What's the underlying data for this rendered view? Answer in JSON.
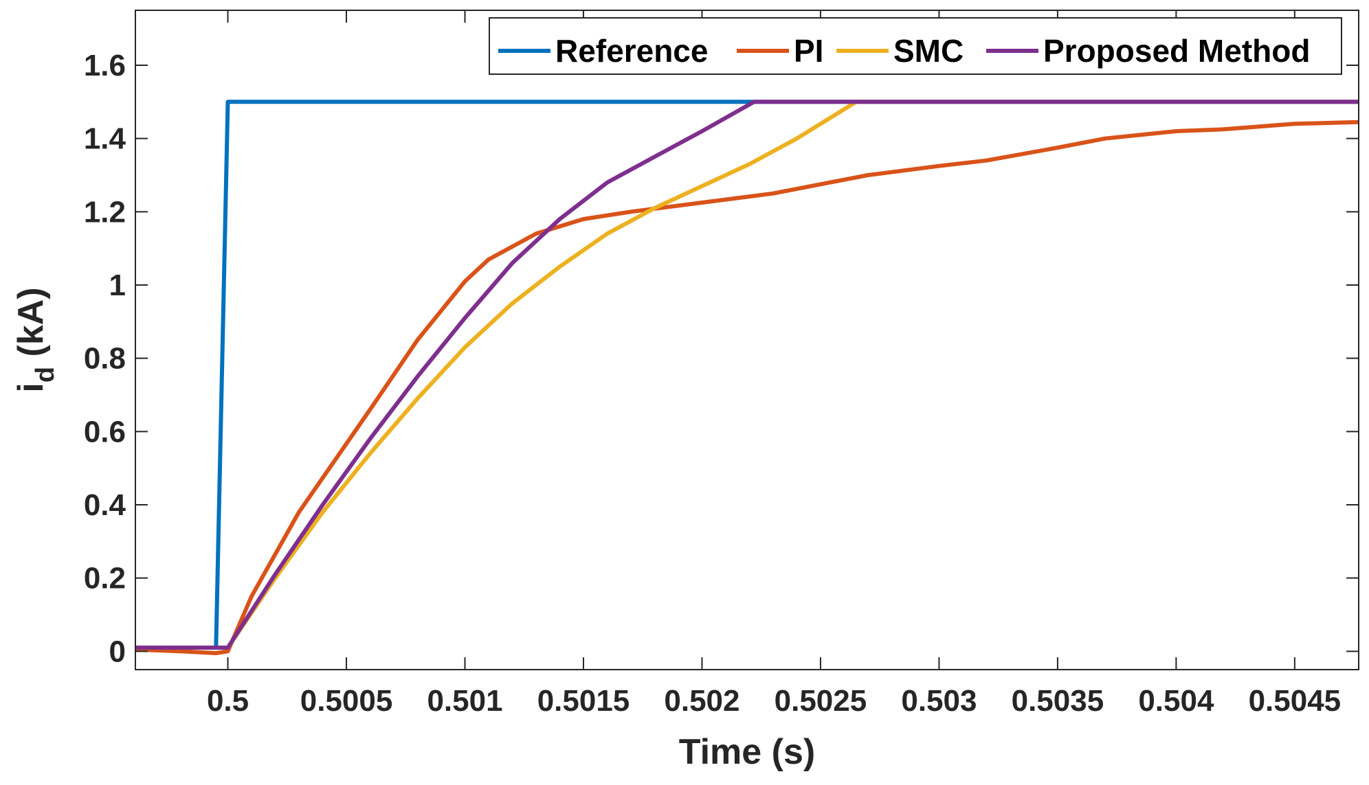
{
  "chart_data": {
    "type": "line",
    "title": "",
    "xlabel": "Time (s)",
    "ylabel_main": "i",
    "ylabel_sub": "d",
    "ylabel_rest": " (kA)",
    "xlim": [
      0.49961,
      0.50477
    ],
    "ylim": [
      -0.05,
      1.75
    ],
    "x_ticks": [
      0.5,
      0.5005,
      0.501,
      0.5015,
      0.502,
      0.5025,
      0.503,
      0.5035,
      0.504,
      0.5045
    ],
    "x_tick_labels": [
      "0.5",
      "0.5005",
      "0.501",
      "0.5015",
      "0.502",
      "0.5025",
      "0.503",
      "0.5035",
      "0.504",
      "0.5045"
    ],
    "y_ticks": [
      0,
      0.2,
      0.4,
      0.6,
      0.8,
      1,
      1.2,
      1.4,
      1.6
    ],
    "y_tick_labels": [
      "0",
      "0.2",
      "0.4",
      "0.6",
      "0.8",
      "1",
      "1.2",
      "1.4",
      "1.6"
    ],
    "grid": false,
    "legend_position": "top-right",
    "series": [
      {
        "name": "Reference",
        "color": "#0072BD",
        "x": [
          0.49961,
          0.49995,
          0.5,
          0.50477
        ],
        "y": [
          0.01,
          0.01,
          1.5,
          1.5
        ]
      },
      {
        "name": "PI",
        "color": "#D95319",
        "x": [
          0.49961,
          0.4998,
          0.49995,
          0.5,
          0.5001,
          0.5003,
          0.5006,
          0.5008,
          0.501,
          0.5011,
          0.5013,
          0.5015,
          0.5017,
          0.502,
          0.5023,
          0.5025,
          0.5027,
          0.503,
          0.5032,
          0.5035,
          0.5037,
          0.504,
          0.5042,
          0.5045,
          0.50477
        ],
        "y": [
          0.005,
          0.0,
          -0.005,
          0.0,
          0.15,
          0.38,
          0.66,
          0.85,
          1.01,
          1.07,
          1.14,
          1.18,
          1.2,
          1.225,
          1.25,
          1.275,
          1.3,
          1.325,
          1.34,
          1.375,
          1.4,
          1.42,
          1.425,
          1.44,
          1.445
        ]
      },
      {
        "name": "SMC",
        "color": "#EDB120",
        "x": [
          0.49961,
          0.49995,
          0.5,
          0.5002,
          0.5004,
          0.5006,
          0.5008,
          0.501,
          0.5012,
          0.5014,
          0.5016,
          0.5018,
          0.502,
          0.5022,
          0.5024,
          0.50265,
          0.50477
        ],
        "y": [
          0.01,
          0.01,
          0.01,
          0.2,
          0.38,
          0.54,
          0.69,
          0.83,
          0.95,
          1.05,
          1.14,
          1.21,
          1.27,
          1.33,
          1.4,
          1.5,
          1.5
        ]
      },
      {
        "name": "Proposed Method",
        "color": "#7E2F8E",
        "x": [
          0.49961,
          0.49995,
          0.5,
          0.5002,
          0.5004,
          0.5006,
          0.5008,
          0.501,
          0.5012,
          0.5014,
          0.5016,
          0.5018,
          0.502,
          0.50222,
          0.50477
        ],
        "y": [
          0.01,
          0.01,
          0.01,
          0.21,
          0.4,
          0.58,
          0.75,
          0.91,
          1.06,
          1.18,
          1.28,
          1.35,
          1.42,
          1.5,
          1.5
        ]
      }
    ]
  }
}
